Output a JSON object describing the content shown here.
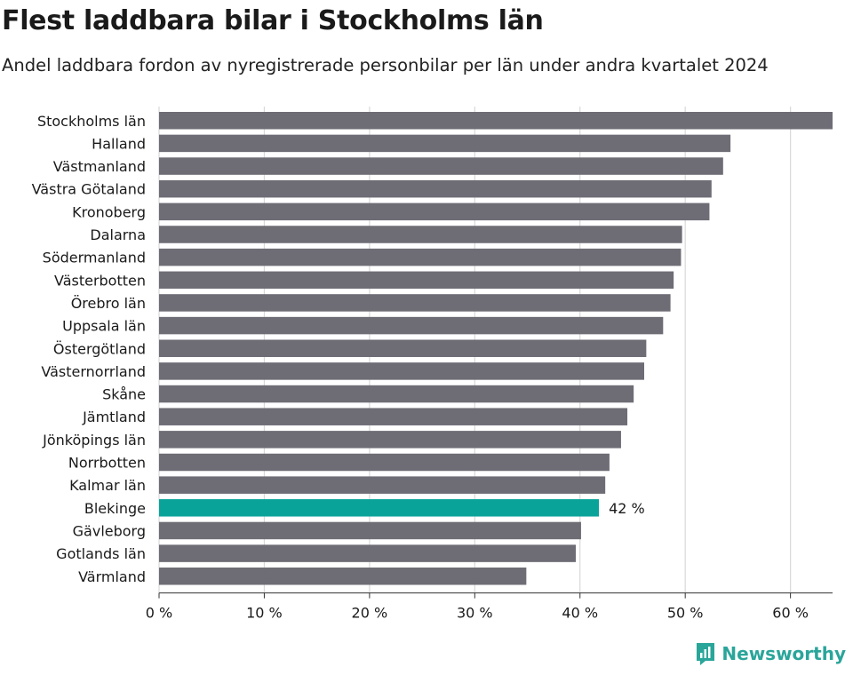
{
  "header": {
    "title": "Flest laddbara bilar i Stockholms län",
    "subtitle": "Andel laddbara fordon av nyregistrerade personbilar per län under andra kvartalet 2024"
  },
  "chart_data": {
    "type": "bar",
    "orientation": "horizontal",
    "categories": [
      "Stockholms län",
      "Halland",
      "Västmanland",
      "Västra Götaland",
      "Kronoberg",
      "Dalarna",
      "Södermanland",
      "Västerbotten",
      "Örebro län",
      "Uppsala län",
      "Östergötland",
      "Västernorrland",
      "Skåne",
      "Jämtland",
      "Jönköpings län",
      "Norrbotten",
      "Kalmar län",
      "Blekinge",
      "Gävleborg",
      "Gotlands län",
      "Värmland"
    ],
    "values": [
      64.0,
      54.3,
      53.6,
      52.5,
      52.3,
      49.7,
      49.6,
      48.9,
      48.6,
      47.9,
      46.3,
      46.1,
      45.1,
      44.5,
      43.9,
      42.8,
      42.4,
      41.8,
      40.1,
      39.6,
      34.9
    ],
    "highlight": {
      "category": "Blekinge",
      "label": "42 %"
    },
    "xticks": [
      0,
      10,
      20,
      30,
      40,
      50,
      60
    ],
    "xtick_labels": [
      "0 %",
      "10 %",
      "20 %",
      "30 %",
      "40 %",
      "50 %",
      "60 %"
    ],
    "xlim": [
      0,
      64
    ],
    "grid": true,
    "colors": {
      "bar": "#6e6c75",
      "highlight": "#0aa39a",
      "grid": "#d9d9d9",
      "axis": "#333333"
    }
  },
  "brand": {
    "name": "Newsworthy",
    "color": "#2aa59a"
  }
}
